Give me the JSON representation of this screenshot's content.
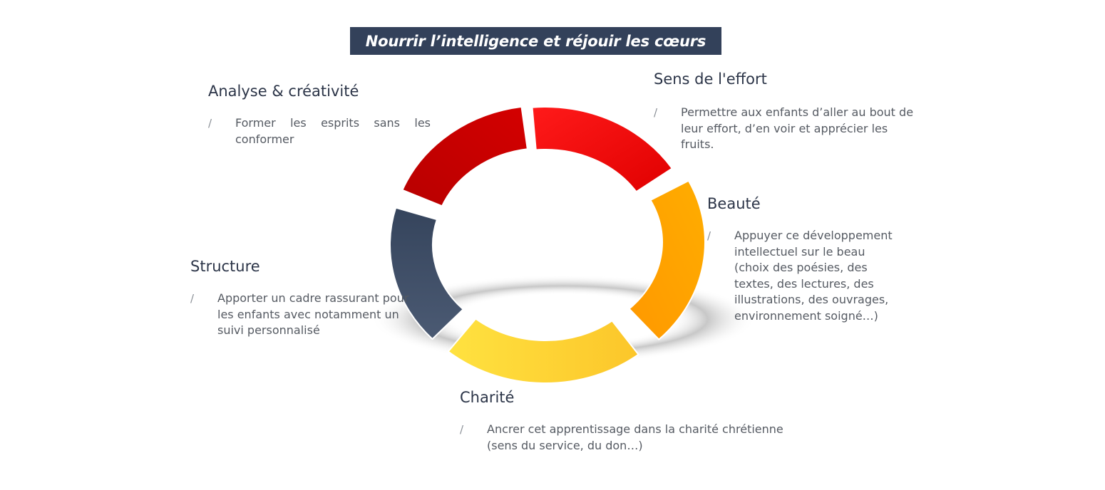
{
  "title": "Nourrir l’intelligence et réjouir les cœurs",
  "bullet_mark": "/",
  "segments": [
    {
      "key": "sens",
      "heading": "Sens de l'effort",
      "text": "Permettre aux enfants d’aller au bout de leur effort, d’en voir et apprécier les fruits.",
      "color": "#ff0000"
    },
    {
      "key": "beaute",
      "heading": "Beauté",
      "text": "Appuyer ce développement intellectuel sur le beau (choix des poésies, des textes, des lectures, des illustrations, des ouvrages, environnement soigné…)",
      "color": "#ffa500"
    },
    {
      "key": "charite",
      "heading": "Charité",
      "text": "Ancrer cet apprentissage dans la charité chrétienne (sens du service, du don…)",
      "color": "#fdd835"
    },
    {
      "key": "structure",
      "heading": "Structure",
      "text": "Apporter un cadre rassurant pour les enfants avec notamment un suivi personnalisé",
      "color": "#3d4a63"
    },
    {
      "key": "analyse",
      "heading": "Analyse & créativité",
      "text": "Former les esprits sans les conformer",
      "color": "#cc0000"
    }
  ]
}
